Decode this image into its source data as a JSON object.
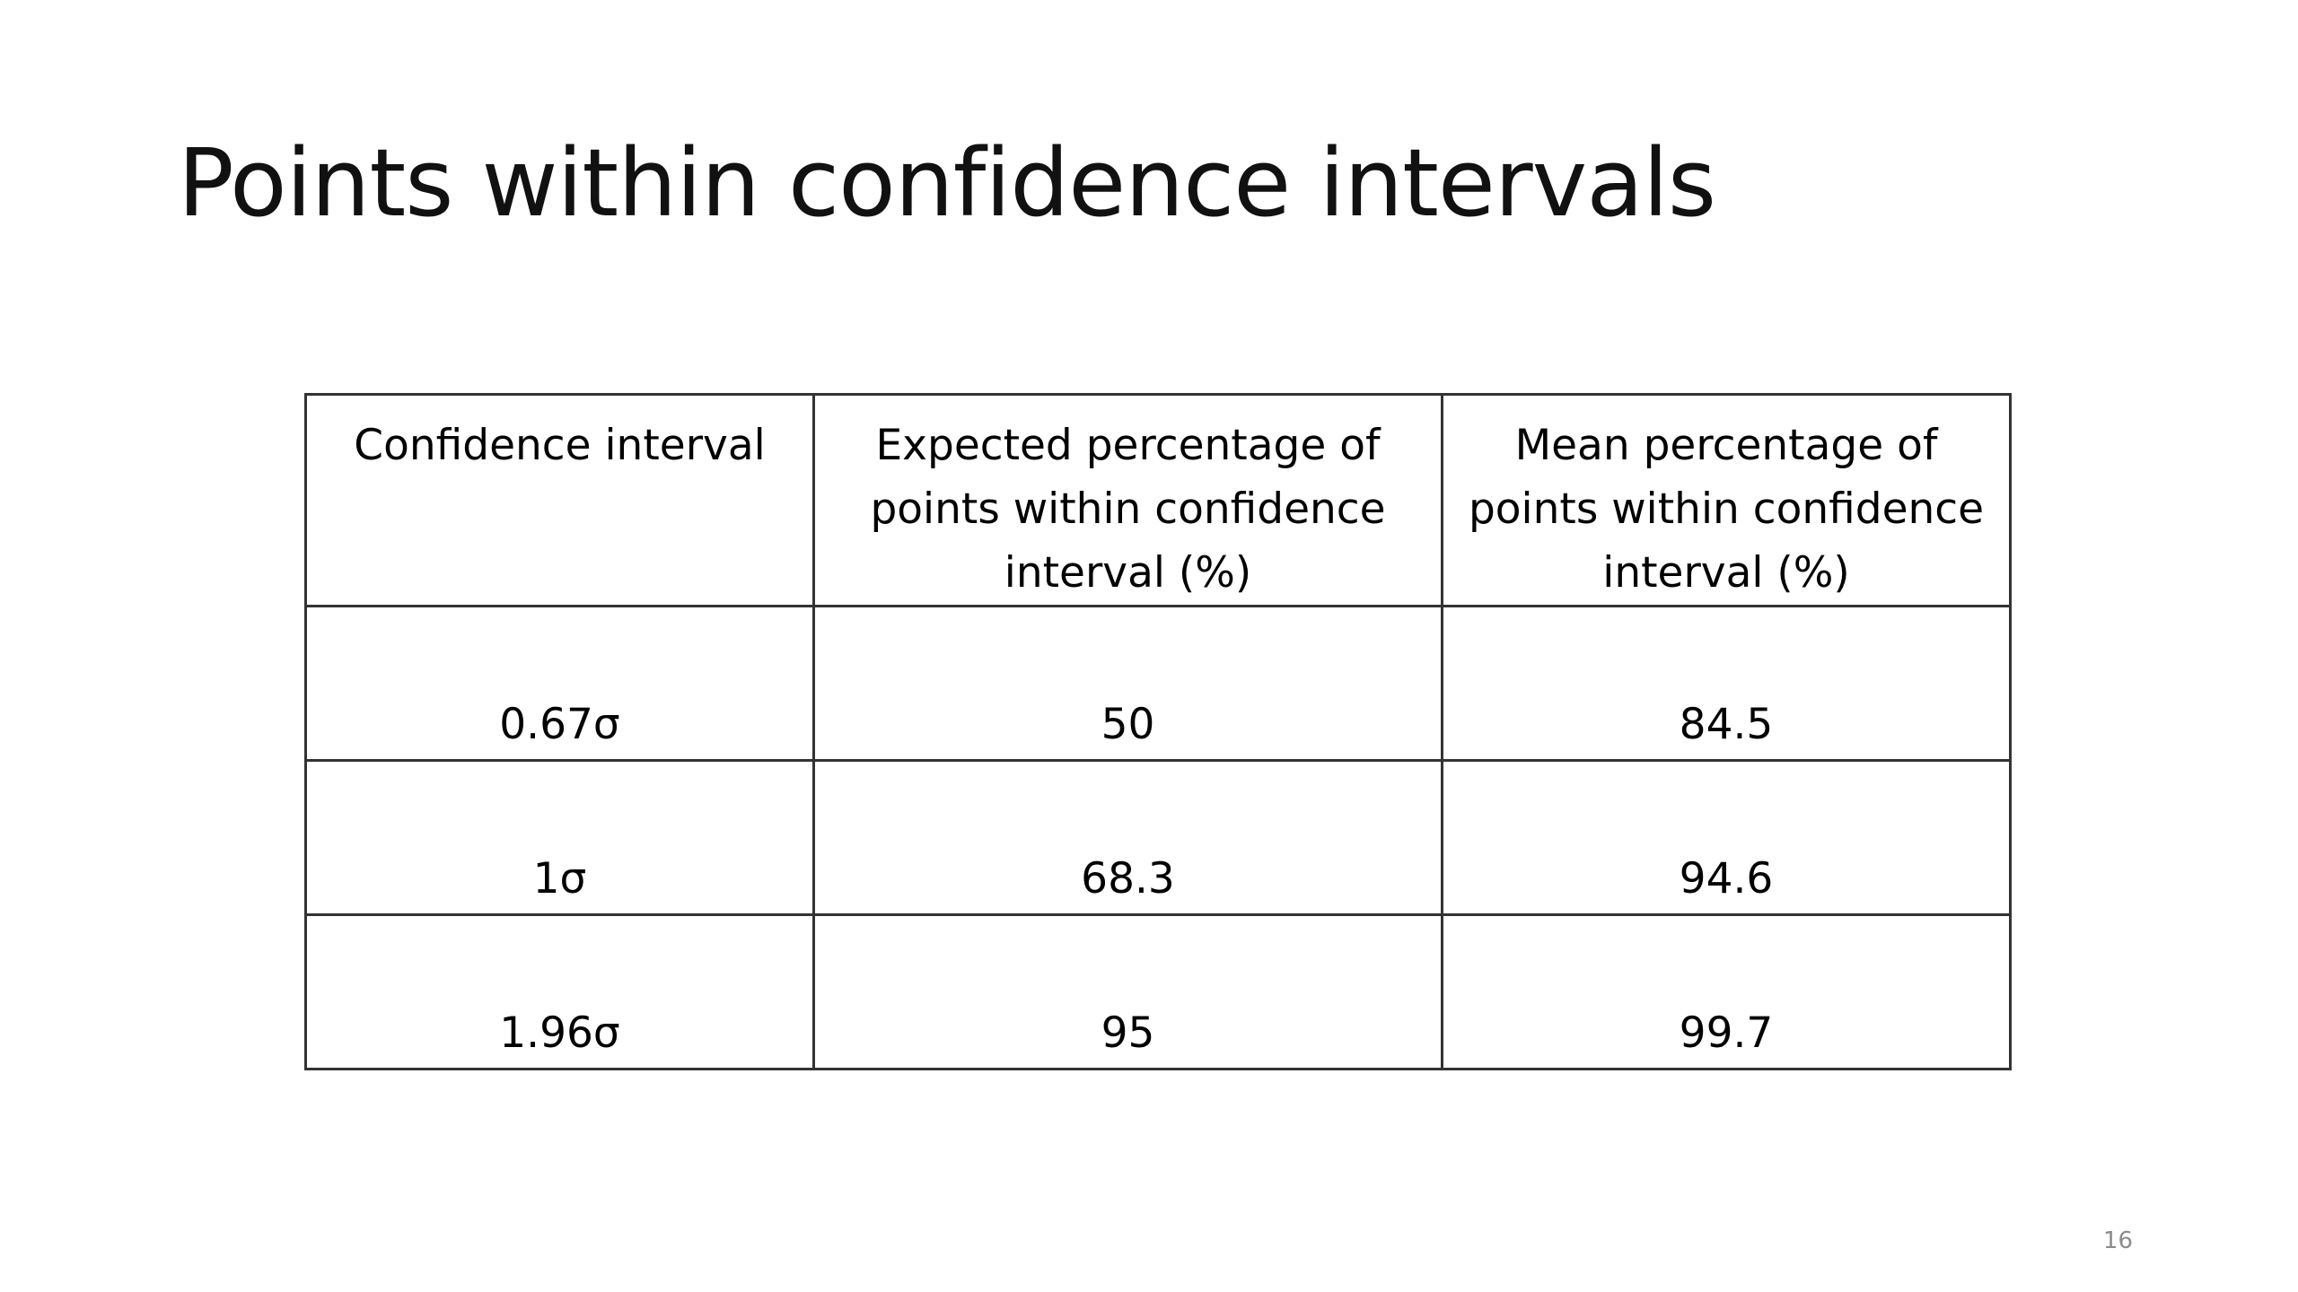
{
  "slide": {
    "title": "Points within confidence intervals",
    "page_number": "16"
  },
  "table": {
    "headers": [
      "Confidence interval",
      "Expected percentage of points within confidence interval (%)",
      "Mean percentage of points within confidence interval (%)"
    ],
    "rows": [
      [
        "0.67σ",
        "50",
        "84.5"
      ],
      [
        "1σ",
        "68.3",
        "94.6"
      ],
      [
        "1.96σ",
        "95",
        "99.7"
      ]
    ]
  }
}
